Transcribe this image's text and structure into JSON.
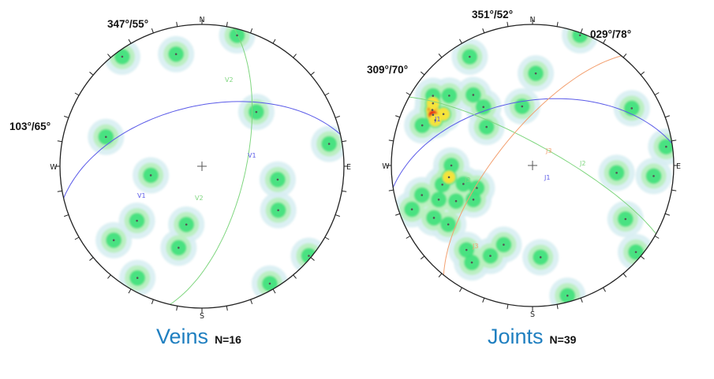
{
  "colors": {
    "caption": "#1f7fc0",
    "veins_set_1": "#5a5ae8",
    "veins_set_2": "#7fd67f",
    "joints_set_1": "#5a5ae8",
    "joints_set_2": "#7fd67f",
    "joints_set_3": "#f3a070",
    "contour_low": "#d8eef2",
    "contour_mid": "#b9f0bd",
    "contour_green": "#3ee07a",
    "contour_yellow": "#f5e33b",
    "contour_red": "#e82418"
  },
  "stereonets": [
    {
      "title": "Veins",
      "count_label": "N=16",
      "directions": {
        "n": "N",
        "e": "E",
        "s": "S",
        "w": "W"
      },
      "plane_labels": [
        "347°/55°",
        "103°/65°"
      ],
      "sets": [
        {
          "label": "V1",
          "color": "#5a5ae8"
        },
        {
          "label": "V2",
          "color": "#7fd67f"
        }
      ],
      "poles": [
        {
          "trend": 196,
          "plunge": 40
        },
        {
          "trend": 195,
          "plunge": 55
        },
        {
          "trend": 347,
          "plunge": 20
        },
        {
          "trend": 324,
          "plunge": 5
        },
        {
          "trend": 15,
          "plunge": 5
        },
        {
          "trend": 45,
          "plunge": 45
        },
        {
          "trend": 80,
          "plunge": 10
        },
        {
          "trend": 100,
          "plunge": 45
        },
        {
          "trend": 120,
          "plunge": 38
        },
        {
          "trend": 230,
          "plunge": 20
        },
        {
          "trend": 287,
          "plunge": 30
        },
        {
          "trend": 260,
          "plunge": 60
        },
        {
          "trend": 230,
          "plunge": 40
        },
        {
          "trend": 210,
          "plunge": 10
        },
        {
          "trend": 150,
          "plunge": 5
        },
        {
          "trend": 130,
          "plunge": 2
        }
      ]
    },
    {
      "title": "Joints",
      "count_label": "N=39",
      "directions": {
        "n": "N",
        "e": "E",
        "s": "S",
        "w": "W"
      },
      "plane_labels": [
        "351°/52°",
        "029°/78°",
        "309°/70°"
      ],
      "sets": [
        {
          "label": "J1",
          "color": "#5a5ae8"
        },
        {
          "label": "J2",
          "color": "#7fd67f"
        },
        {
          "label": "J3",
          "color": "#f3a070"
        }
      ],
      "poles": [
        {
          "trend": 299,
          "plunge": 20
        },
        {
          "trend": 297,
          "plunge": 22
        },
        {
          "trend": 302,
          "plunge": 18
        },
        {
          "trend": 295,
          "plunge": 25
        },
        {
          "trend": 305,
          "plunge": 15
        },
        {
          "trend": 300,
          "plunge": 28
        },
        {
          "trend": 290,
          "plunge": 18
        },
        {
          "trend": 310,
          "plunge": 24
        },
        {
          "trend": 255,
          "plunge": 20
        },
        {
          "trend": 250,
          "plunge": 30
        },
        {
          "trend": 245,
          "plunge": 40
        },
        {
          "trend": 240,
          "plunge": 50
        },
        {
          "trend": 248,
          "plunge": 55
        },
        {
          "trend": 255,
          "plunge": 48
        },
        {
          "trend": 262,
          "plunge": 40
        },
        {
          "trend": 258,
          "plunge": 35
        },
        {
          "trend": 235,
          "plunge": 28
        },
        {
          "trend": 242,
          "plunge": 22
        },
        {
          "trend": 270,
          "plunge": 42
        },
        {
          "trend": 250,
          "plunge": 10
        },
        {
          "trend": 205,
          "plunge": 30
        },
        {
          "trend": 212,
          "plunge": 20
        },
        {
          "trend": 218,
          "plunge": 25
        },
        {
          "trend": 200,
          "plunge": 40
        },
        {
          "trend": 175,
          "plunge": 35
        },
        {
          "trend": 330,
          "plunge": 12
        },
        {
          "trend": 320,
          "plunge": 35
        },
        {
          "trend": 320,
          "plunge": 45
        },
        {
          "trend": 350,
          "plunge": 55
        },
        {
          "trend": 2,
          "plunge": 35
        },
        {
          "trend": 60,
          "plunge": 20
        },
        {
          "trend": 95,
          "plunge": 40
        },
        {
          "trend": 95,
          "plunge": 15
        },
        {
          "trend": 120,
          "plunge": 25
        },
        {
          "trend": 82,
          "plunge": 5
        },
        {
          "trend": 130,
          "plunge": 5
        },
        {
          "trend": 165,
          "plunge": 5
        },
        {
          "trend": 20,
          "plunge": 2
        },
        {
          "trend": 310,
          "plunge": 55
        }
      ]
    }
  ]
}
